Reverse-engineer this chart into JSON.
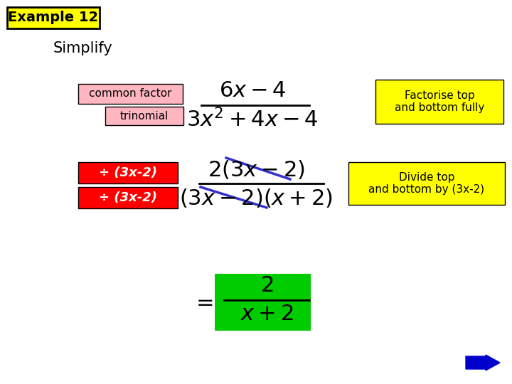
{
  "bg_color": "#ffffff",
  "title_box_color": "#ffff00",
  "title_box_border": "#000000",
  "title_text": "Example 12",
  "simplify_text": "Simplify",
  "common_factor_box_color": "#ffb6c1",
  "common_factor_text": "common factor",
  "trinomial_box_color": "#ffb6c1",
  "trinomial_text": "trinomial",
  "factorise_box_color": "#ffff00",
  "factorise_text": "Factorise top\nand bottom fully",
  "divide_box_color": "#ffff00",
  "divide_text": "Divide top\nand bottom by (3x-2)",
  "red_box_color": "#ff0000",
  "div_text": "÷ (3x-2)",
  "result_box_color": "#00cc00",
  "blue_line_color": "#3333cc",
  "arrow_color": "#0000cc"
}
